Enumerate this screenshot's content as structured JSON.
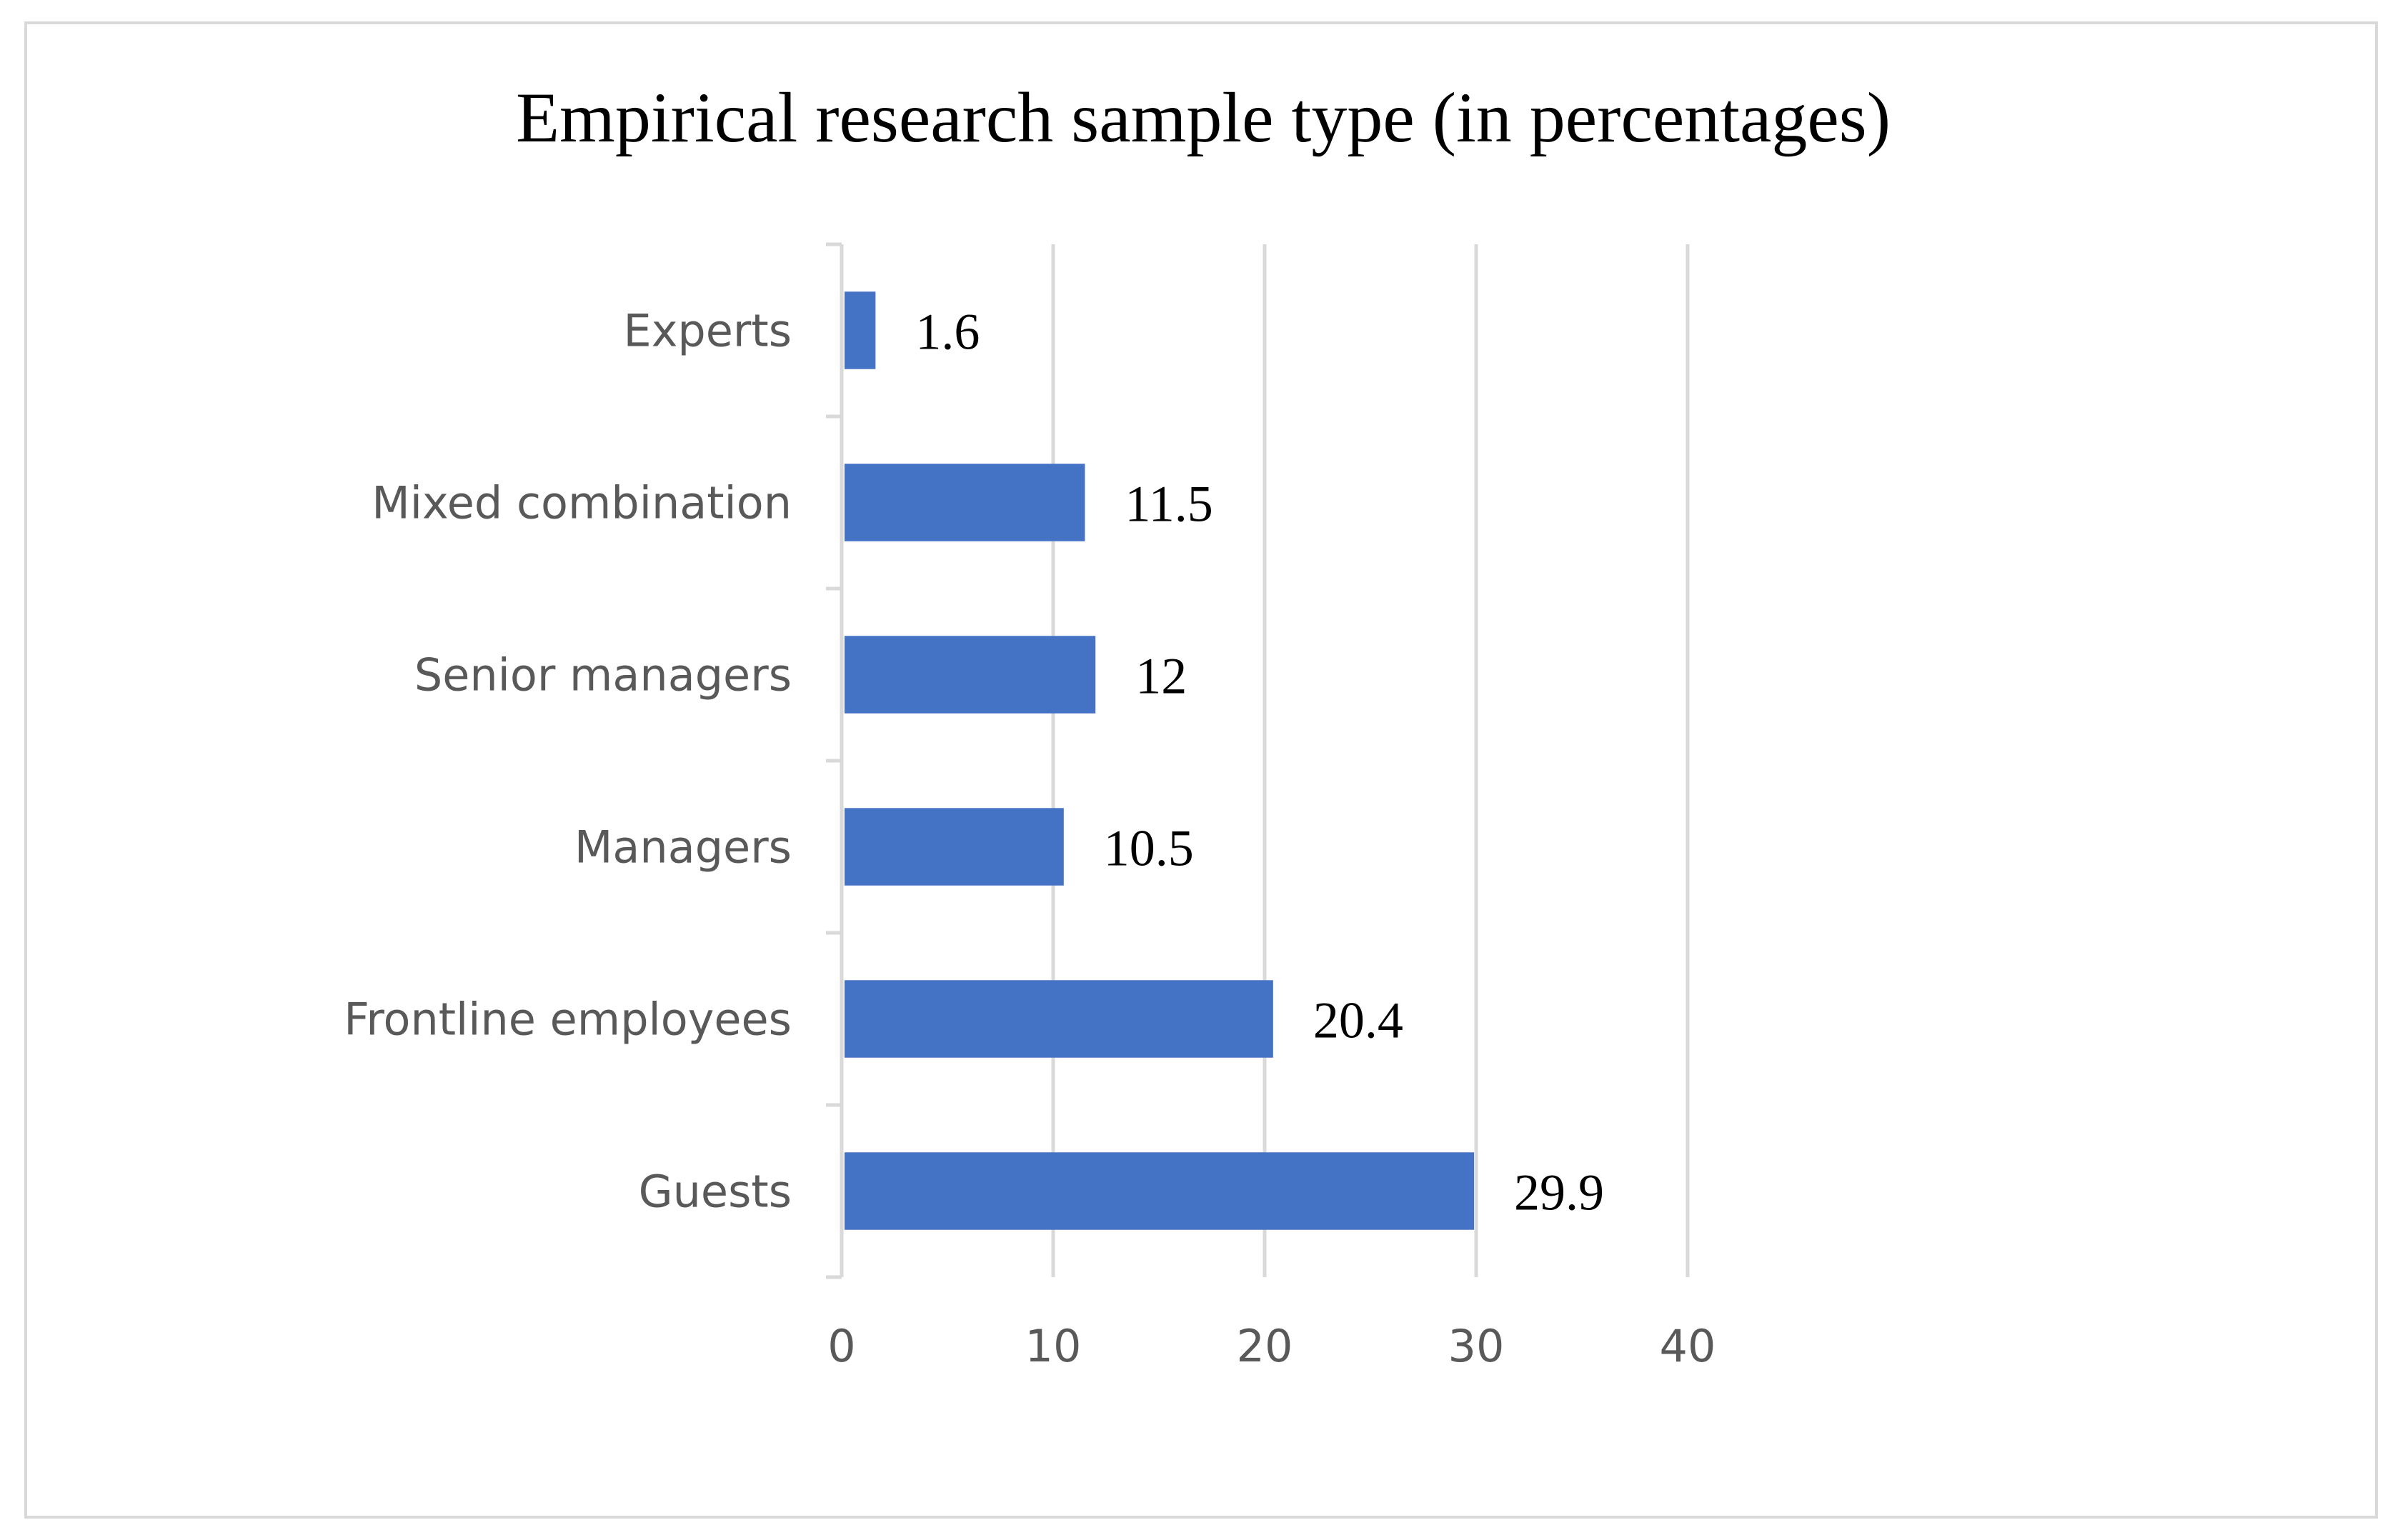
{
  "chart_data": {
    "type": "bar",
    "orientation": "horizontal",
    "title": "Empirical research sample type (in percentages)",
    "xlabel": "",
    "ylabel": "",
    "categories": [
      "Experts",
      "Mixed combination",
      "Senior managers",
      "Managers",
      "Frontline employees",
      "Guests"
    ],
    "values": [
      1.6,
      11.5,
      12,
      10.5,
      20.4,
      29.9
    ],
    "data_labels": [
      "1.6",
      "11.5",
      "12",
      "10.5",
      "20.4",
      "29.9"
    ],
    "xlim": [
      0,
      40
    ],
    "ticks": [
      0,
      10,
      20,
      30,
      40
    ],
    "tick_labels": [
      "0",
      "10",
      "20",
      "30",
      "40"
    ],
    "grid": true,
    "legend": "none"
  },
  "colors": {
    "bar": "#4472C4",
    "grid": "#D9D9D9",
    "axis": "#D9D9D9",
    "frame": "#D9D9D9",
    "text_muted": "#595959",
    "text_main": "#000000"
  }
}
